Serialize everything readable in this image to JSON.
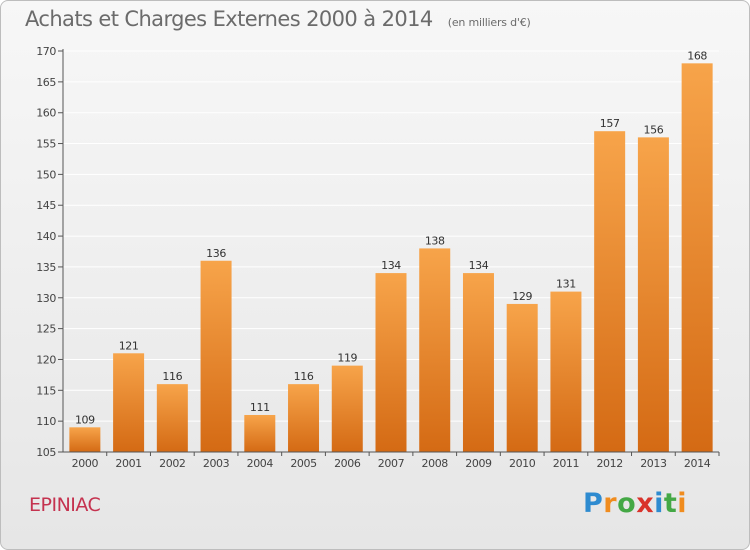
{
  "header": {
    "title": "Achats et Charges Externes 2000 à 2014",
    "unit": "(en milliers d'€)"
  },
  "footer": {
    "place": "EPINIAC",
    "brand": "Proxiti",
    "brand_colors": [
      "#2e8bd0",
      "#f08c1e",
      "#44a845",
      "#d9332b",
      "#2e8bd0",
      "#44a845",
      "#f08c1e"
    ]
  },
  "colors": {
    "bar_light": "#f7a44a",
    "bar_dark": "#d46a14",
    "axis": "#555555",
    "grid": "#ffffff"
  },
  "chart_data": {
    "type": "bar",
    "title": "Achats et Charges Externes 2000 à 2014",
    "subtitle": "(en milliers d'€)",
    "categories": [
      "2000",
      "2001",
      "2002",
      "2003",
      "2004",
      "2005",
      "2006",
      "2007",
      "2008",
      "2009",
      "2010",
      "2011",
      "2012",
      "2013",
      "2014"
    ],
    "values": [
      109,
      121,
      116,
      136,
      111,
      116,
      119,
      134,
      138,
      134,
      129,
      131,
      157,
      156,
      168
    ],
    "ylim": [
      105,
      170
    ],
    "yticks": [
      105,
      110,
      115,
      120,
      125,
      130,
      135,
      140,
      145,
      150,
      155,
      160,
      165,
      170
    ],
    "grid": true,
    "data_labels": true
  }
}
